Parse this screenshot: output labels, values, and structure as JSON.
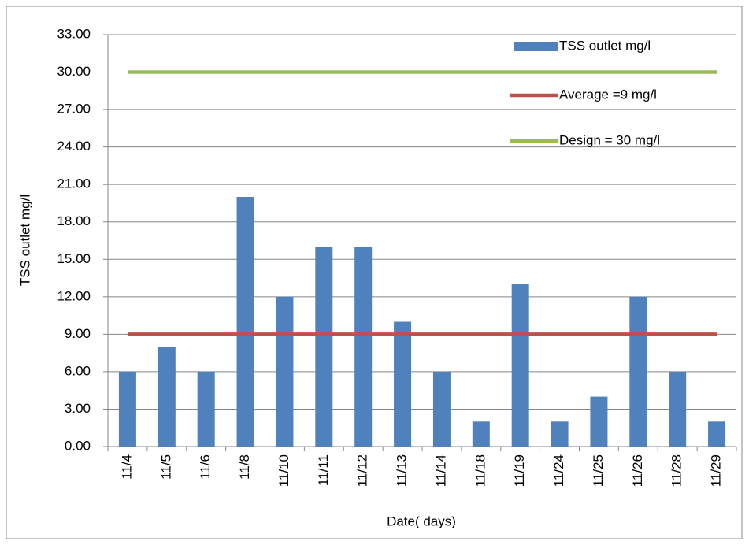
{
  "chart_data": {
    "type": "bar",
    "categories": [
      "11/4",
      "11/5",
      "11/6",
      "11/8",
      "11/10",
      "11/11",
      "11/12",
      "11/13",
      "11/14",
      "11/18",
      "11/19",
      "11/24",
      "11/25",
      "11/26",
      "11/28",
      "11/29"
    ],
    "series": [
      {
        "name": "TSS outlet mg/l",
        "color": "#4f81bd",
        "values": [
          6,
          8,
          6,
          20,
          12,
          16,
          16,
          10,
          6,
          2,
          13,
          2,
          4,
          12,
          6,
          2
        ]
      },
      {
        "name": "Average =9 mg/l",
        "type": "line",
        "color": "#c0504d",
        "values": [
          9,
          9,
          9,
          9,
          9,
          9,
          9,
          9,
          9,
          9,
          9,
          9,
          9,
          9,
          9,
          9
        ]
      },
      {
        "name": "Design = 30 mg/l",
        "type": "line",
        "color": "#9bbb59",
        "values": [
          30,
          30,
          30,
          30,
          30,
          30,
          30,
          30,
          30,
          30,
          30,
          30,
          30,
          30,
          30,
          30
        ]
      }
    ],
    "x_label": "Date( days)",
    "y_label": "TSS outlet mg/l",
    "ylim": [
      0,
      33
    ],
    "yticks": [
      {
        "value": 0,
        "label": "0.00"
      },
      {
        "value": 3,
        "label": "3.00"
      },
      {
        "value": 6,
        "label": "6.00"
      },
      {
        "value": 9,
        "label": "9.00"
      },
      {
        "value": 12,
        "label": "12.00"
      },
      {
        "value": 15,
        "label": "15.00"
      },
      {
        "value": 18,
        "label": "18.00"
      },
      {
        "value": 21,
        "label": "21.00"
      },
      {
        "value": 24,
        "label": "24.00"
      },
      {
        "value": 27,
        "label": "27.00"
      },
      {
        "value": 30,
        "label": "30.00"
      },
      {
        "value": 33,
        "label": "33.00"
      }
    ],
    "grid": true,
    "legend": "top-right"
  }
}
